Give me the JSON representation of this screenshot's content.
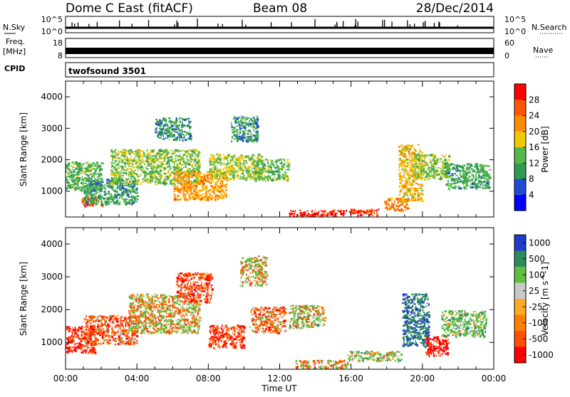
{
  "header": {
    "station": "Dome C East (fitACF)",
    "beam": "Beam 08",
    "date": "28/Dec/2014"
  },
  "noise_panel": {
    "left_label": "N.Sky",
    "right_label": "N.Search",
    "left_ticks": [
      "10^5",
      "10^0"
    ],
    "right_ticks": [
      "10^5",
      "10^0"
    ]
  },
  "freq_panel": {
    "left_label_1": "Freq.",
    "left_label_2": "[MHz]",
    "right_label": "Nave",
    "left_ticks": [
      "18",
      "8"
    ],
    "right_ticks": [
      "60",
      "0"
    ]
  },
  "cpid_panel": {
    "label": "CPID",
    "value": "twofsound 3501"
  },
  "axes": {
    "xlabel": "Time UT",
    "ylabel": "Slant Range [km]",
    "x_ticks": [
      "00:00",
      "04:00",
      "08:00",
      "12:00",
      "16:00",
      "20:00",
      "00:00"
    ],
    "y_ticks": [
      "1000",
      "2000",
      "3000",
      "4000"
    ]
  },
  "power_colorbar": {
    "label": "Power [dB]",
    "ticks": [
      "4",
      "8",
      "12",
      "16",
      "20",
      "24",
      "28"
    ],
    "colors": [
      "#0000ff",
      "#1e4bd6",
      "#2f9a4e",
      "#55b84a",
      "#f0c800",
      "#ff8c00",
      "#ff5500",
      "#ff0000"
    ]
  },
  "velocity_colorbar": {
    "label": "Velocity [m s^-1]",
    "ticks": [
      "1000",
      "500",
      "100",
      "25",
      "-25",
      "-100",
      "-500",
      "-1000"
    ],
    "colors": [
      "#1e3cc8",
      "#2d8c5a",
      "#5fc040",
      "#c8c8c8",
      "#ffaa20",
      "#ff8000",
      "#ff5000",
      "#ff0000"
    ]
  },
  "chart_data": [
    {
      "type": "heatmap",
      "title": "Power",
      "xlabel": "Time UT",
      "ylabel": "Slant Range [km]",
      "xlim": [
        0,
        24
      ],
      "ylim": [
        180,
        4500
      ],
      "clim": [
        0,
        30
      ],
      "cells": [
        [
          0.5,
          1500,
          3,
          900,
          12
        ],
        [
          1.5,
          700,
          1.2,
          300,
          24
        ],
        [
          2.5,
          1000,
          3,
          800,
          10
        ],
        [
          5,
          1800,
          5,
          1100,
          14
        ],
        [
          6,
          3000,
          2,
          700,
          9
        ],
        [
          7.5,
          1200,
          3,
          900,
          20
        ],
        [
          9.5,
          1800,
          3,
          800,
          15
        ],
        [
          10,
          3000,
          1.5,
          800,
          10
        ],
        [
          11.5,
          1700,
          2,
          700,
          13
        ],
        [
          14,
          320,
          3,
          200,
          28
        ],
        [
          16.5,
          350,
          2,
          200,
          26
        ],
        [
          18.5,
          600,
          1.3,
          400,
          22
        ],
        [
          19.3,
          1600,
          1.3,
          1800,
          18
        ],
        [
          20.5,
          1800,
          2,
          800,
          14
        ],
        [
          22.5,
          1500,
          2.5,
          800,
          11
        ]
      ]
    },
    {
      "type": "heatmap",
      "title": "Velocity",
      "xlabel": "Time UT",
      "ylabel": "Slant Range [km]",
      "xlim": [
        0,
        24
      ],
      "ylim": [
        180,
        4500
      ],
      "clim": [
        -1000,
        1000
      ],
      "cells": [
        [
          0.8,
          1100,
          1.6,
          800,
          -300
        ],
        [
          2.5,
          1400,
          3,
          900,
          -150
        ],
        [
          5.5,
          1900,
          4,
          1200,
          0
        ],
        [
          7.2,
          2700,
          2,
          900,
          -200
        ],
        [
          9,
          1200,
          2,
          700,
          -250
        ],
        [
          10.5,
          3200,
          1.5,
          900,
          20
        ],
        [
          11.3,
          1700,
          2,
          800,
          -120
        ],
        [
          13.5,
          1800,
          2,
          700,
          80
        ],
        [
          14.3,
          350,
          3,
          250,
          10
        ],
        [
          17.3,
          600,
          3,
          300,
          150
        ],
        [
          19.6,
          1700,
          1.5,
          1600,
          700
        ],
        [
          20.8,
          900,
          1.3,
          600,
          -400
        ],
        [
          22.3,
          1600,
          2.5,
          800,
          200
        ]
      ]
    }
  ]
}
